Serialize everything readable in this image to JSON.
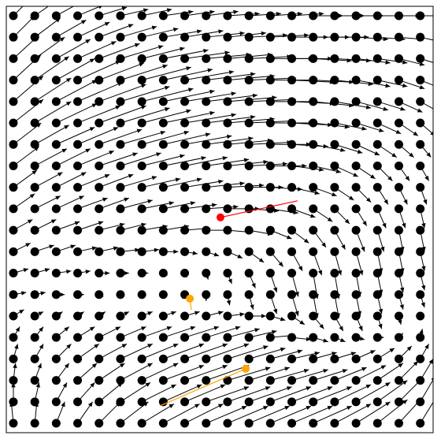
{
  "chart_data": {
    "type": "quiver",
    "xlim": [
      -0.33,
      19.6
    ],
    "ylim": [
      -0.44,
      19.44
    ],
    "x": [
      0,
      1,
      2,
      3,
      4,
      5,
      6,
      7,
      8,
      9,
      10,
      11,
      12,
      13,
      14,
      15,
      16,
      17,
      18,
      19
    ],
    "y": [
      0,
      1,
      2,
      3,
      4,
      5,
      6,
      7,
      8,
      9,
      10,
      11,
      12,
      13,
      14,
      15,
      16,
      17,
      18,
      19
    ],
    "point_color": "#000000",
    "arrow_color": "#000000",
    "u": [
      [
        -0.1,
        0.1,
        0.4,
        0.7,
        1.0,
        1.3,
        1.5,
        1.7,
        1.8,
        1.9,
        1.9,
        1.9,
        1.9,
        1.9,
        1.8,
        1.7,
        1.6,
        1.4,
        1.1,
        0.8
      ],
      [
        0,
        0.2,
        0.5,
        0.8,
        1.1,
        1.4,
        1.6,
        1.8,
        1.9,
        2.0,
        2.0,
        2.0,
        1.9,
        1.9,
        1.8,
        1.7,
        1.6,
        1.4,
        1.1,
        0.7
      ],
      [
        0.1,
        0.3,
        0.6,
        0.9,
        1.2,
        1.5,
        1.7,
        1.9,
        2.0,
        2.0,
        2.0,
        1.9,
        1.8,
        1.7,
        1.6,
        1.5,
        1.4,
        1.2,
        0.9,
        0.6
      ],
      [
        0.2,
        0.4,
        0.7,
        1.0,
        1.3,
        1.5,
        1.7,
        1.9,
        2.0,
        2.0,
        1.9,
        1.7,
        1.5,
        1.3,
        1.1,
        1.0,
        0.9,
        0.8,
        0.6,
        0.4
      ],
      [
        0.3,
        0.4,
        0.6,
        0.8,
        1.0,
        1.2,
        1.4,
        1.5,
        1.6,
        1.6,
        1.5,
        1.3,
        1.1,
        0.9,
        0.7,
        0.5,
        0.4,
        0.3,
        0.2,
        0.1
      ],
      [
        0.5,
        0.4,
        0.3,
        0.3,
        0.3,
        0.4,
        0.5,
        0.6,
        0.7,
        0.8,
        0.8,
        0.8,
        0.7,
        0.6,
        0.5,
        0.4,
        0.3,
        0.2,
        0.1,
        0
      ],
      [
        0.6,
        0.5,
        0.4,
        0.3,
        0.2,
        0.1,
        0,
        -0.1,
        -0.1,
        0,
        0.1,
        0.2,
        0.3,
        0.3,
        0.2,
        0.2,
        0.2,
        0.2,
        0.2,
        0.2
      ],
      [
        0.7,
        0.7,
        0.7,
        0.6,
        0.5,
        0.4,
        0.3,
        0.2,
        0.1,
        0.1,
        0.2,
        0.3,
        0.3,
        0.3,
        0.2,
        0.2,
        0.2,
        0.2,
        0.2,
        0.2
      ],
      [
        0.8,
        0.9,
        0.9,
        0.9,
        0.9,
        0.9,
        0.8,
        0.7,
        0.6,
        0.6,
        0.7,
        0.7,
        0.6,
        0.5,
        0.4,
        0.3,
        0.3,
        0.2,
        0.2,
        0.2
      ],
      [
        0.9,
        1.0,
        1.1,
        1.2,
        1.2,
        1.2,
        1.2,
        1.2,
        1.2,
        1.2,
        1.2,
        1.1,
        1.0,
        0.8,
        0.6,
        0.5,
        0.4,
        0.3,
        0.2,
        0.2
      ],
      [
        1.0,
        1.2,
        1.3,
        1.4,
        1.4,
        1.5,
        1.5,
        1.5,
        1.5,
        1.5,
        1.5,
        1.4,
        1.3,
        1.1,
        0.9,
        0.7,
        0.5,
        0.4,
        0.3,
        0.2
      ],
      [
        1.1,
        1.3,
        1.4,
        1.5,
        1.6,
        1.7,
        1.8,
        1.8,
        1.8,
        1.8,
        1.7,
        1.6,
        1.5,
        1.3,
        1.1,
        0.9,
        0.7,
        0.5,
        0.4,
        0.3
      ],
      [
        1.2,
        1.5,
        1.6,
        1.7,
        1.8,
        1.9,
        2.0,
        2.0,
        2.0,
        2.0,
        1.9,
        1.8,
        1.7,
        1.5,
        1.3,
        1.1,
        0.9,
        0.7,
        0.5,
        0.4
      ],
      [
        1.3,
        1.6,
        1.8,
        1.9,
        2.0,
        2.1,
        2.2,
        2.2,
        2.2,
        2.2,
        2.1,
        2.0,
        1.9,
        1.7,
        1.5,
        1.3,
        1.1,
        0.9,
        0.7,
        0.5
      ],
      [
        1.4,
        1.7,
        1.9,
        2.0,
        2.2,
        2.3,
        2.3,
        2.4,
        2.4,
        2.3,
        2.2,
        2.1,
        2.0,
        1.9,
        1.7,
        1.5,
        1.3,
        1.1,
        0.9,
        0.7
      ],
      [
        1.4,
        1.7,
        1.9,
        2.1,
        2.2,
        2.3,
        2.4,
        2.4,
        2.4,
        2.4,
        2.3,
        2.2,
        2.1,
        2.0,
        1.9,
        1.7,
        1.5,
        1.3,
        1.1,
        0.9
      ],
      [
        1.3,
        1.6,
        1.8,
        2.0,
        2.1,
        2.2,
        2.3,
        2.3,
        2.3,
        2.3,
        2.2,
        2.2,
        2.1,
        2.0,
        1.9,
        1.8,
        1.6,
        1.4,
        1.2,
        1.0
      ],
      [
        1.2,
        1.4,
        1.6,
        1.8,
        1.9,
        2.0,
        2.0,
        2.1,
        2.1,
        2.1,
        2.1,
        2.0,
        2.0,
        1.9,
        1.8,
        1.7,
        1.6,
        1.4,
        1.2,
        1.0
      ],
      [
        1.0,
        1.2,
        1.4,
        1.5,
        1.6,
        1.7,
        1.7,
        1.8,
        1.8,
        1.8,
        1.8,
        1.8,
        1.8,
        1.7,
        1.7,
        1.6,
        1.5,
        1.3,
        1.1,
        0.9
      ],
      [
        0.8,
        1.0,
        1.1,
        1.2,
        1.3,
        1.3,
        1.4,
        1.4,
        1.4,
        1.5,
        1.5,
        1.5,
        1.5,
        1.5,
        1.4,
        1.4,
        1.3,
        1.2,
        1.0,
        0.8
      ]
    ],
    "v": [
      [
        1.0,
        1.0,
        1.0,
        1.0,
        1.0,
        1.0,
        0.9,
        0.9,
        0.9,
        0.8,
        0.8,
        0.8,
        0.8,
        0.8,
        0.8,
        0.9,
        1.0,
        1.1,
        1.2,
        1.3
      ],
      [
        0.9,
        0.9,
        0.9,
        0.9,
        0.9,
        0.9,
        0.8,
        0.8,
        0.8,
        0.7,
        0.7,
        0.7,
        0.7,
        0.7,
        0.7,
        0.8,
        0.9,
        1.0,
        1.1,
        1.2
      ],
      [
        0.8,
        0.8,
        0.8,
        0.8,
        0.8,
        0.8,
        0.8,
        0.7,
        0.7,
        0.7,
        0.6,
        0.6,
        0.5,
        0.5,
        0.5,
        0.6,
        0.7,
        0.8,
        0.9,
        1.0
      ],
      [
        0.7,
        0.7,
        0.7,
        0.7,
        0.7,
        0.7,
        0.7,
        0.7,
        0.7,
        0.7,
        0.6,
        0.5,
        0.4,
        0.3,
        0.3,
        0.3,
        0.4,
        0.5,
        0.6,
        0.7
      ],
      [
        0.5,
        0.5,
        0.5,
        0.5,
        0.5,
        0.5,
        0.5,
        0.5,
        0.5,
        0.5,
        0.4,
        0.3,
        0.1,
        -0.1,
        -0.2,
        -0.2,
        -0.1,
        0,
        0.2,
        0.4
      ],
      [
        0.3,
        0.2,
        0.2,
        0.2,
        0.2,
        0.2,
        0.2,
        0.2,
        0.2,
        0.2,
        0.1,
        0,
        -0.2,
        -0.4,
        -0.6,
        -0.7,
        -0.7,
        -0.6,
        -0.4,
        -0.2
      ],
      [
        0.1,
        0.1,
        0,
        0,
        -0.1,
        -0.1,
        -0.1,
        -0.1,
        -0.2,
        -0.3,
        -0.5,
        -0.7,
        -0.9,
        -1.0,
        -1.1,
        -1.1,
        -1.0,
        -0.9,
        -0.7,
        -0.6
      ],
      [
        0.2,
        0.2,
        0.1,
        0.1,
        0,
        0,
        0,
        -0.1,
        -0.2,
        -0.3,
        -0.5,
        -0.7,
        -0.9,
        -1.1,
        -1.2,
        -1.2,
        -1.1,
        -1.0,
        -0.9,
        -0.8
      ],
      [
        0.4,
        0.3,
        0.3,
        0.2,
        0.2,
        0.1,
        0.1,
        0,
        -0.1,
        -0.2,
        -0.3,
        -0.5,
        -0.7,
        -0.9,
        -1.1,
        -1.1,
        -1.1,
        -1.0,
        -1.0,
        -0.9
      ],
      [
        0.5,
        0.5,
        0.4,
        0.4,
        0.3,
        0.3,
        0.2,
        0.2,
        0.1,
        0,
        -0.1,
        -0.2,
        -0.4,
        -0.6,
        -0.8,
        -0.9,
        -1.0,
        -1.0,
        -1.0,
        -1.0
      ],
      [
        0.7,
        0.6,
        0.6,
        0.5,
        0.5,
        0.4,
        0.3,
        0.3,
        0.2,
        0.1,
        0,
        -0.1,
        -0.2,
        -0.4,
        -0.6,
        -0.7,
        -0.8,
        -0.9,
        -0.9,
        -0.9
      ],
      [
        0.8,
        0.7,
        0.7,
        0.6,
        0.6,
        0.5,
        0.4,
        0.4,
        0.3,
        0.2,
        0.1,
        0,
        -0.1,
        -0.3,
        -0.4,
        -0.6,
        -0.7,
        -0.8,
        -0.8,
        -0.8
      ],
      [
        0.9,
        0.8,
        0.8,
        0.7,
        0.6,
        0.6,
        0.5,
        0.4,
        0.4,
        0.3,
        0.2,
        0.1,
        0,
        -0.2,
        -0.3,
        -0.5,
        -0.6,
        -0.7,
        -0.7,
        -0.7
      ],
      [
        1.0,
        0.9,
        0.8,
        0.8,
        0.7,
        0.6,
        0.6,
        0.5,
        0.4,
        0.3,
        0.2,
        0.1,
        0,
        -0.1,
        -0.3,
        -0.4,
        -0.5,
        -0.6,
        -0.6,
        -0.6
      ],
      [
        1.1,
        1.0,
        0.9,
        0.8,
        0.8,
        0.7,
        0.6,
        0.5,
        0.4,
        0.3,
        0.2,
        0.1,
        0,
        -0.1,
        -0.2,
        -0.3,
        -0.4,
        -0.5,
        -0.6,
        -0.6
      ],
      [
        1.2,
        1.1,
        1.0,
        0.9,
        0.8,
        0.7,
        0.6,
        0.5,
        0.4,
        0.3,
        0.2,
        0.1,
        0,
        -0.1,
        -0.2,
        -0.3,
        -0.4,
        -0.4,
        -0.5,
        -0.5
      ],
      [
        1.2,
        1.1,
        1.0,
        0.9,
        0.8,
        0.7,
        0.6,
        0.5,
        0.4,
        0.3,
        0.2,
        0.1,
        0,
        -0.1,
        -0.1,
        -0.2,
        -0.3,
        -0.3,
        -0.4,
        -0.4
      ],
      [
        1.1,
        1.0,
        0.9,
        0.8,
        0.7,
        0.6,
        0.5,
        0.4,
        0.3,
        0.2,
        0.2,
        0.1,
        0,
        0,
        -0.1,
        -0.1,
        -0.2,
        -0.2,
        -0.3,
        -0.3
      ],
      [
        1.0,
        0.9,
        0.8,
        0.7,
        0.6,
        0.5,
        0.4,
        0.3,
        0.3,
        0.2,
        0.2,
        0.1,
        0.1,
        0,
        0,
        0,
        -0.1,
        -0.1,
        -0.1,
        -0.2
      ],
      [
        0.8,
        0.7,
        0.6,
        0.5,
        0.4,
        0.3,
        0.3,
        0.2,
        0.2,
        0.2,
        0.1,
        0.1,
        0.1,
        0.1,
        0,
        0,
        0,
        0,
        0,
        0
      ]
    ],
    "particles": [
      {
        "color": "#ff0000",
        "x": 9.67,
        "y": 9.6,
        "trail_x": [
          9.67,
          13.27
        ],
        "trail_y": [
          9.6,
          10.37
        ]
      },
      {
        "color": "#ffa500",
        "x": 8.24,
        "y": 5.81,
        "trail_x": [
          8.24,
          8.31
        ],
        "trail_y": [
          5.81,
          5.29
        ]
      },
      {
        "color": "#ffa500",
        "x": 10.85,
        "y": 2.54,
        "trail_x": [
          10.85,
          6.84
        ],
        "trail_y": [
          2.54,
          0.81
        ]
      }
    ]
  }
}
